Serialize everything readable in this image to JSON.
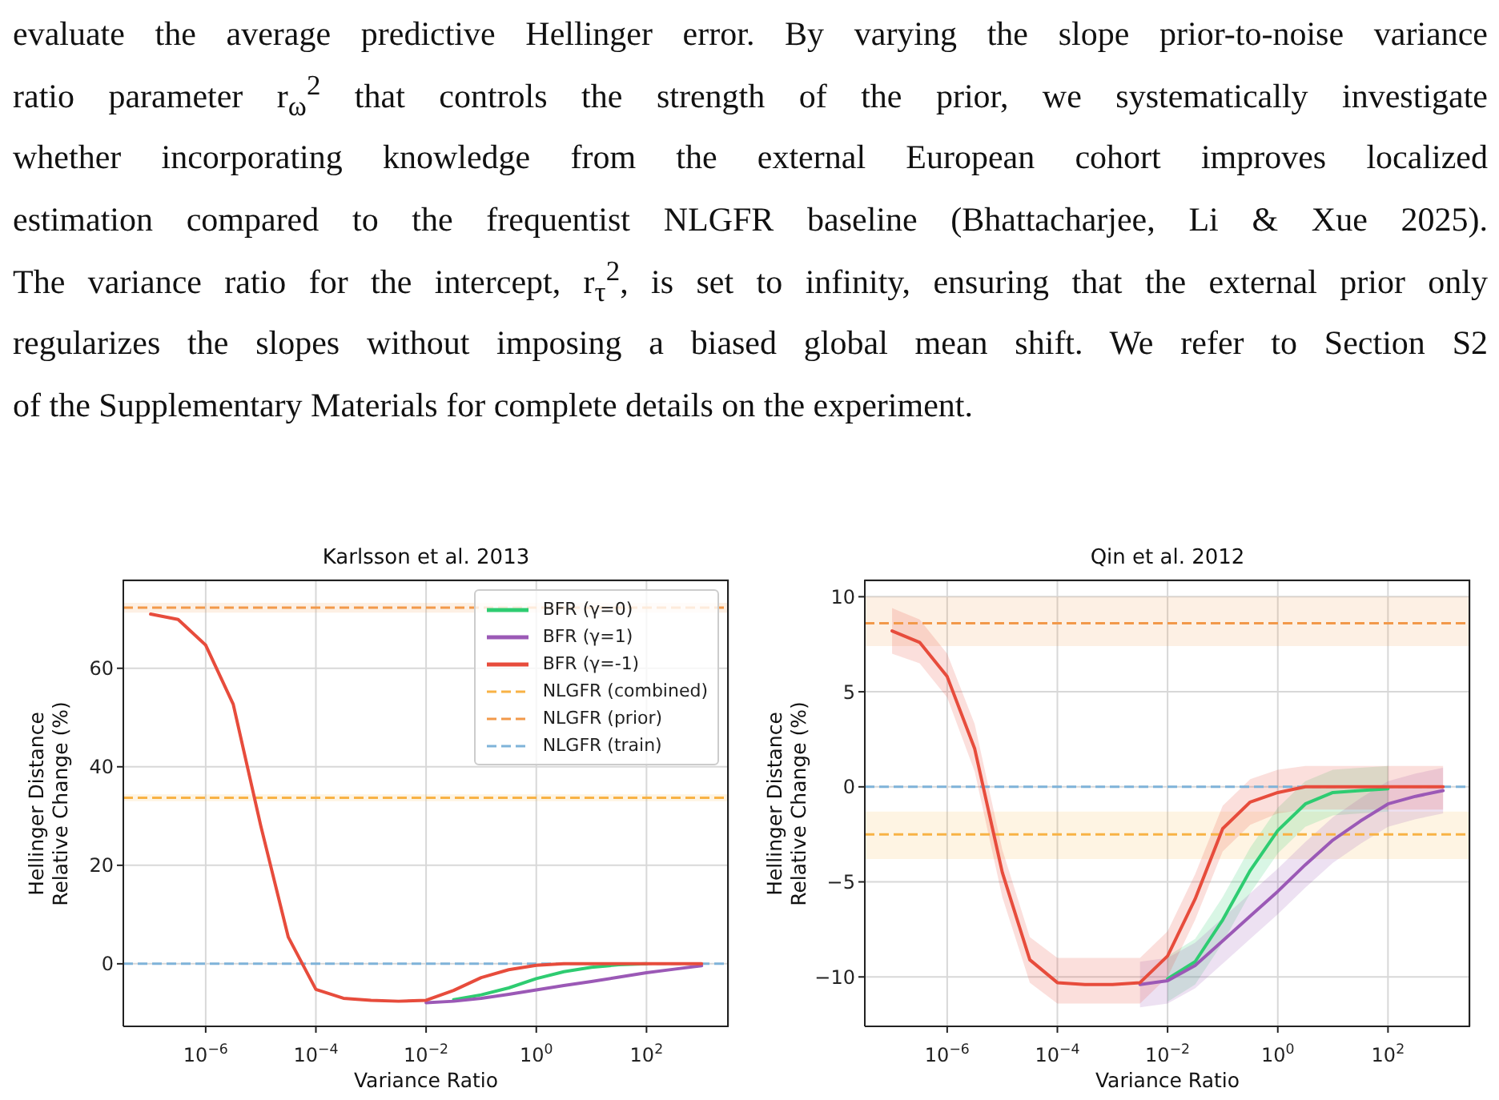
{
  "chart_data": [
    {
      "type": "line",
      "title": "Karlsson et al. 2013",
      "xlabel": "Variance Ratio",
      "ylabel": "Hellinger Distance\nRelative Change (%)",
      "annotations": [
        "evaluate the average predictive Hellinger error. By varying the slope prior-to-noise variance",
        "ratio parameter r$_{ω}$$^{2}$ that controls the strength of the prior, we systematically investigate",
        "whether incorporating knowledge from the external European cohort improves localized",
        "estimation compared to the frequentist NLGFR baseline (Bhattacharjee, Li & Xue 2025).",
        "The variance ratio for the intercept, r$_{τ}$$^{2}$, is set to infinity, ensuring that the external prior only",
        "regularizes the slopes without imposing a biased global mean shift. We refer to Section S2",
        "of the Supplementary Materials for complete details on the experiment."
      ],
      "log": "x",
      "grid": true,
      "legend": "top right",
      "xlim": [
        3.2e-08,
        3100
      ],
      "ylim": [
        -12.7,
        78
      ],
      "xticks": [
        {
          "value": 1e-06,
          "label": "10$^{−6}$"
        },
        {
          "value": 0.0001,
          "label": "10$^{−4}$"
        },
        {
          "value": 0.01,
          "label": "10$^{−2}$"
        },
        {
          "value": 1,
          "label": "10$^{0}$"
        },
        {
          "value": 100,
          "label": "10$^{2}$"
        }
      ],
      "yticks": [
        0,
        20,
        40,
        60
      ],
      "x": [
        1e-07,
        3.16e-07,
        1e-06,
        3.16e-06,
        1e-05,
        3.16e-05,
        0.0001,
        0.000316,
        0.001,
        0.00316,
        0.01,
        0.0316,
        0.1,
        0.316,
        1,
        3.16,
        10,
        31.6,
        100,
        316,
        1000
      ],
      "series": [
        {
          "name": "BFR (γ=0)",
          "color": "#2ecc71",
          "values": [
            null,
            null,
            null,
            null,
            null,
            null,
            null,
            null,
            null,
            null,
            null,
            -7.3,
            -6.3,
            -4.9,
            -3,
            -1.6,
            -0.7,
            -0.2,
            0,
            null,
            null
          ]
        },
        {
          "name": "BFR (γ=1)",
          "color": "#9b59b6",
          "values": [
            null,
            null,
            null,
            null,
            null,
            null,
            null,
            null,
            null,
            null,
            -7.9,
            -7.6,
            -7,
            -6.2,
            -5.3,
            -4.4,
            -3.6,
            -2.7,
            -1.8,
            -1.1,
            -0.4
          ]
        },
        {
          "name": "BFR (γ=-1)",
          "color": "#e74c3c",
          "values": [
            71,
            69.9,
            64.7,
            52.7,
            28,
            5.4,
            -5.2,
            -7,
            -7.4,
            -7.6,
            -7.4,
            -5.4,
            -2.8,
            -1.2,
            -0.3,
            0,
            0,
            0,
            0,
            0,
            0
          ]
        }
      ],
      "ref_lines": [
        {
          "axis": "y",
          "value": 33.7,
          "label": "NLGFR (combined)",
          "color": "#f8b245",
          "line_style": "dashed"
        },
        {
          "axis": "y",
          "value": 72.3,
          "label": "NLGFR (prior)",
          "color": "#f2994a",
          "line_style": "dashed"
        },
        {
          "axis": "y",
          "value": 0,
          "label": "NLGFR (train)",
          "color": "#7fb3d9",
          "line_style": "dashed"
        }
      ],
      "bands": [
        {
          "axis": "y",
          "from": 33,
          "to": 34.4,
          "color": "#f8b245"
        },
        {
          "axis": "y",
          "from": 71.3,
          "to": 73.3,
          "color": "#f2994a"
        }
      ]
    },
    {
      "type": "line",
      "title": "Qin et al. 2012",
      "xlabel": "Variance Ratio",
      "ylabel": "Hellinger Distance\nRelative Change (%)",
      "log": "x",
      "grid": true,
      "xlim": [
        3.2e-08,
        3100
      ],
      "ylim": [
        -12.6,
        10.9
      ],
      "xticks": [
        {
          "value": 1e-06,
          "label": "10$^{−6}$"
        },
        {
          "value": 0.0001,
          "label": "10$^{−4}$"
        },
        {
          "value": 0.01,
          "label": "10$^{−2}$"
        },
        {
          "value": 1,
          "label": "10$^{0}$"
        },
        {
          "value": 100,
          "label": "10$^{2}$"
        }
      ],
      "yticks": [
        {
          "value": -10,
          "label": "−10"
        },
        {
          "value": -5,
          "label": "−5"
        },
        0,
        5,
        10
      ],
      "x": [
        1e-07,
        3.16e-07,
        1e-06,
        3.16e-06,
        1e-05,
        3.16e-05,
        0.0001,
        0.000316,
        0.001,
        0.00316,
        0.01,
        0.0316,
        0.1,
        0.316,
        1,
        3.16,
        10,
        31.6,
        100,
        316,
        1000
      ],
      "series": [
        {
          "color": "#2ecc71",
          "values": [
            null,
            null,
            null,
            null,
            null,
            null,
            null,
            null,
            null,
            null,
            -10.1,
            -9.2,
            -7,
            -4.4,
            -2.3,
            -0.9,
            -0.3,
            -0.2,
            -0.1,
            null,
            null
          ],
          "lower": [
            null,
            null,
            null,
            null,
            null,
            null,
            null,
            null,
            null,
            null,
            -11.3,
            -10.4,
            -8.2,
            -5.6,
            -3.5,
            -2.1,
            -1.5,
            -1.4,
            -1.3,
            null,
            null
          ],
          "upper": [
            null,
            null,
            null,
            null,
            null,
            null,
            null,
            null,
            null,
            null,
            -8.9,
            -8,
            -5.8,
            -3.2,
            -1.1,
            0.3,
            0.9,
            1,
            1.1,
            null,
            null
          ]
        },
        {
          "color": "#9b59b6",
          "values": [
            null,
            null,
            null,
            null,
            null,
            null,
            null,
            null,
            null,
            -10.4,
            -10.2,
            -9.4,
            -8.1,
            -6.8,
            -5.5,
            -4.1,
            -2.8,
            -1.8,
            -0.9,
            -0.5,
            -0.2
          ],
          "lower": [
            null,
            null,
            null,
            null,
            null,
            null,
            null,
            null,
            null,
            -11.6,
            -11.4,
            -10.6,
            -9.3,
            -8,
            -6.7,
            -5.3,
            -4,
            -3,
            -2.1,
            -1.7,
            -1.4
          ],
          "upper": [
            null,
            null,
            null,
            null,
            null,
            null,
            null,
            null,
            null,
            -9.2,
            -9,
            -8.2,
            -6.9,
            -5.6,
            -4.3,
            -2.9,
            -1.6,
            -0.6,
            0.3,
            0.7,
            1
          ]
        },
        {
          "color": "#e74c3c",
          "values": [
            8.2,
            7.6,
            5.8,
            2,
            -4.5,
            -9.1,
            -10.3,
            -10.4,
            -10.4,
            -10.3,
            -8.9,
            -5.9,
            -2.2,
            -0.8,
            -0.3,
            0,
            0,
            0,
            0,
            0,
            0
          ],
          "lower": [
            7,
            6.5,
            4.7,
            0.8,
            -5.8,
            -10.3,
            -11.4,
            -11.4,
            -11.4,
            -11.4,
            -10,
            -7,
            -3.4,
            -2,
            -1.4,
            -1.2,
            -1.2,
            -1.2,
            -1.2,
            -1.2,
            -1.2
          ],
          "upper": [
            9.4,
            8.8,
            7,
            3.3,
            -3.3,
            -7.9,
            -9,
            -9,
            -9,
            -9,
            -7.6,
            -4.6,
            -1,
            0.4,
            0.9,
            1.1,
            1.1,
            1.1,
            1.1,
            1.1,
            1.1
          ]
        }
      ],
      "ref_lines": [
        {
          "axis": "y",
          "value": -2.5,
          "color": "#f8b245",
          "line_style": "dashed"
        },
        {
          "axis": "y",
          "value": 8.6,
          "color": "#f2994a",
          "line_style": "dashed"
        },
        {
          "axis": "y",
          "value": 0,
          "color": "#7fb3d9",
          "line_style": "dashed"
        }
      ],
      "bands": [
        {
          "axis": "y",
          "from": -3.8,
          "to": -1.3,
          "color": "#f8b245"
        },
        {
          "axis": "y",
          "from": 7.4,
          "to": 10,
          "color": "#f2994a"
        }
      ]
    }
  ]
}
